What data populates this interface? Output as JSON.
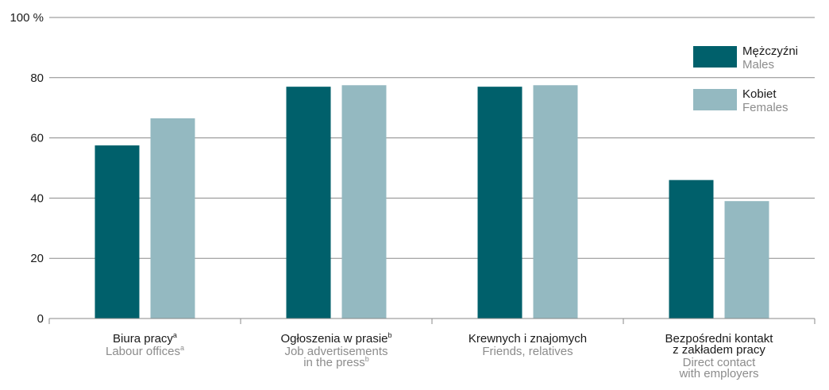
{
  "chart_data": {
    "type": "bar",
    "ylim": [
      0,
      100
    ],
    "y_ticks": [
      {
        "value": 0,
        "label": "0"
      },
      {
        "value": 20,
        "label": "20"
      },
      {
        "value": 40,
        "label": "40"
      },
      {
        "value": 60,
        "label": "60"
      },
      {
        "value": 80,
        "label": "80"
      },
      {
        "value": 100,
        "label": "100 %"
      }
    ],
    "grid": true,
    "legend_position": "top-right",
    "categories": [
      {
        "pl": [
          "Biura pracy"
        ],
        "pl_sup": "a",
        "en": [
          "Labour offices"
        ],
        "en_sup": "a"
      },
      {
        "pl": [
          "Ogłoszenia w prasie"
        ],
        "pl_sup": "b",
        "en": [
          "Job advertisements",
          "in the press"
        ],
        "en_sup": "b"
      },
      {
        "pl": [
          "Krewnych i znajomych"
        ],
        "pl_sup": "",
        "en": [
          "Friends, relatives"
        ],
        "en_sup": ""
      },
      {
        "pl": [
          "Bezpośredni kontakt",
          "z zakładem pracy"
        ],
        "pl_sup": "",
        "en": [
          "Direct contact",
          "with employers"
        ],
        "en_sup": ""
      }
    ],
    "series": [
      {
        "name": "Mężczyźni",
        "name_en": "Males",
        "color": "#00606b",
        "values": [
          57.5,
          77,
          77,
          46
        ]
      },
      {
        "name": "Kobiet",
        "name_en": "Females",
        "color": "#94b9c1",
        "values": [
          66.5,
          77.5,
          77.5,
          39
        ]
      }
    ],
    "colors": {
      "grid": "#8a8a8a",
      "text": "#1a1a1a",
      "text_en": "#8c8c8c"
    }
  }
}
